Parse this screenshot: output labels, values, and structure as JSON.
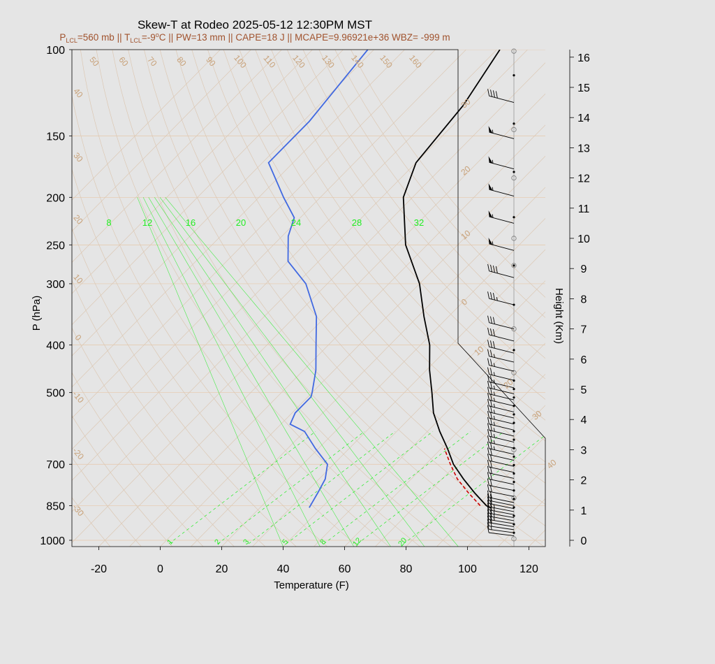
{
  "chart_data": {
    "type": "line",
    "title": "Skew-T at Rodeo 2025-05-12 12:30PM MST",
    "subtitle": "P_LCL=560 mb || T_LCL=-9°C || PW=13 mm || CAPE=18 J || MCAPE=9.96921e+36 WBZ= -999 m",
    "subtitle_parts": {
      "p_lcl_prefix": "P",
      "p_lcl_sub": "LCL",
      "p_lcl_value": "=560 mb || T",
      "t_lcl_sub": "LCL",
      "t_lcl_value": "=-9",
      "t_lcl_deg": "o",
      "rest": "C || PW=13 mm || CAPE=18 J || MCAPE=9.96921e+36 WBZ= -999 m"
    },
    "xlabel": "Temperature (F)",
    "ylabel": "P (hPa)",
    "y2label": "Height (Km)",
    "xlim": [
      -28,
      125
    ],
    "ylim": [
      1030,
      100
    ],
    "x_ticks": [
      -20,
      0,
      20,
      40,
      60,
      80,
      100,
      120
    ],
    "y_ticks": [
      100,
      150,
      200,
      250,
      300,
      400,
      500,
      700,
      850,
      1000
    ],
    "height_ticks": [
      0,
      1,
      2,
      3,
      4,
      5,
      6,
      7,
      8,
      9,
      10,
      11,
      12,
      13,
      14,
      15,
      16
    ],
    "isotherm_labels_top": [
      "50",
      "60",
      "70",
      "80",
      "90",
      "100",
      "110",
      "120",
      "130",
      "140",
      "150",
      "160"
    ],
    "isotherm_labels_left": [
      "40",
      "30",
      "20",
      "10",
      "0",
      "-10",
      "-20",
      "-30"
    ],
    "isotherm_labels_right": [
      "30",
      "20",
      "10",
      "0",
      "10",
      "20",
      "30",
      "40"
    ],
    "mixing_ratio_labels_top": [
      "8",
      "12",
      "16",
      "20",
      "24",
      "28",
      "32"
    ],
    "mixing_ratio_labels_bottom": [
      "1",
      "2",
      "3",
      "5",
      "8",
      "12",
      "20"
    ],
    "series": [
      {
        "name": "temperature",
        "color": "#000000",
        "points": [
          {
            "p": 858,
            "t": 95
          },
          {
            "p": 850,
            "t": 93
          },
          {
            "p": 800,
            "t": 85
          },
          {
            "p": 750,
            "t": 77
          },
          {
            "p": 700,
            "t": 69
          },
          {
            "p": 650,
            "t": 62
          },
          {
            "p": 600,
            "t": 54
          },
          {
            "p": 550,
            "t": 46
          },
          {
            "p": 500,
            "t": 39
          },
          {
            "p": 450,
            "t": 31
          },
          {
            "p": 400,
            "t": 23
          },
          {
            "p": 350,
            "t": 12
          },
          {
            "p": 300,
            "t": 0
          },
          {
            "p": 250,
            "t": -17
          },
          {
            "p": 200,
            "t": -33
          },
          {
            "p": 170,
            "t": -40
          },
          {
            "p": 130,
            "t": -43
          },
          {
            "p": 100,
            "t": -49
          }
        ]
      },
      {
        "name": "dewpoint",
        "color": "#4169e1",
        "points": [
          {
            "p": 858,
            "t": 36
          },
          {
            "p": 800,
            "t": 34
          },
          {
            "p": 750,
            "t": 32
          },
          {
            "p": 700,
            "t": 28
          },
          {
            "p": 650,
            "t": 19
          },
          {
            "p": 600,
            "t": 10
          },
          {
            "p": 580,
            "t": 3
          },
          {
            "p": 550,
            "t": 1
          },
          {
            "p": 510,
            "t": 1
          },
          {
            "p": 500,
            "t": 0
          },
          {
            "p": 450,
            "t": -6
          },
          {
            "p": 400,
            "t": -14
          },
          {
            "p": 350,
            "t": -23
          },
          {
            "p": 300,
            "t": -37
          },
          {
            "p": 270,
            "t": -50
          },
          {
            "p": 240,
            "t": -58
          },
          {
            "p": 220,
            "t": -62
          },
          {
            "p": 200,
            "t": -72
          },
          {
            "p": 170,
            "t": -88
          },
          {
            "p": 140,
            "t": -88
          },
          {
            "p": 100,
            "t": -92
          }
        ]
      },
      {
        "name": "parcel",
        "color": "#cc0000",
        "dashed": true,
        "points": [
          {
            "p": 850,
            "t": 91
          },
          {
            "p": 800,
            "t": 83
          },
          {
            "p": 750,
            "t": 75
          },
          {
            "p": 700,
            "t": 68
          },
          {
            "p": 650,
            "t": 61
          }
        ]
      }
    ],
    "winds": [
      {
        "z": 0.15,
        "speed": 10,
        "dir": 225
      },
      {
        "z": 0.25,
        "speed": 15,
        "dir": 230
      },
      {
        "z": 0.35,
        "speed": 20,
        "dir": 235
      },
      {
        "z": 0.45,
        "speed": 20,
        "dir": 240
      },
      {
        "z": 0.55,
        "speed": 25,
        "dir": 240
      },
      {
        "z": 0.65,
        "speed": 25,
        "dir": 245
      },
      {
        "z": 0.75,
        "speed": 25,
        "dir": 245
      },
      {
        "z": 0.85,
        "speed": 25,
        "dir": 250
      },
      {
        "z": 0.95,
        "speed": 25,
        "dir": 250
      },
      {
        "z": 1.05,
        "speed": 20,
        "dir": 255
      },
      {
        "z": 1.15,
        "speed": 20,
        "dir": 255
      },
      {
        "z": 1.25,
        "speed": 20,
        "dir": 255
      },
      {
        "z": 1.45,
        "speed": 20,
        "dir": 255
      },
      {
        "z": 1.65,
        "speed": 20,
        "dir": 255
      },
      {
        "z": 1.85,
        "speed": 20,
        "dir": 260
      },
      {
        "z": 2.05,
        "speed": 20,
        "dir": 260
      },
      {
        "z": 2.25,
        "speed": 20,
        "dir": 260
      },
      {
        "z": 2.45,
        "speed": 20,
        "dir": 265
      },
      {
        "z": 2.65,
        "speed": 20,
        "dir": 265
      },
      {
        "z": 2.85,
        "speed": 25,
        "dir": 265
      },
      {
        "z": 3.05,
        "speed": 25,
        "dir": 265
      },
      {
        "z": 3.25,
        "speed": 25,
        "dir": 270
      },
      {
        "z": 3.45,
        "speed": 25,
        "dir": 270
      },
      {
        "z": 3.65,
        "speed": 25,
        "dir": 270
      },
      {
        "z": 3.85,
        "speed": 25,
        "dir": 270
      },
      {
        "z": 4.05,
        "speed": 25,
        "dir": 270
      },
      {
        "z": 4.25,
        "speed": 25,
        "dir": 270
      },
      {
        "z": 4.45,
        "speed": 25,
        "dir": 270
      },
      {
        "z": 4.65,
        "speed": 25,
        "dir": 270
      },
      {
        "z": 4.85,
        "speed": 25,
        "dir": 270
      },
      {
        "z": 5.05,
        "speed": 25,
        "dir": 270
      },
      {
        "z": 5.3,
        "speed": 25,
        "dir": 270
      },
      {
        "z": 5.6,
        "speed": 25,
        "dir": 270
      },
      {
        "z": 5.9,
        "speed": 25,
        "dir": 270
      },
      {
        "z": 6.2,
        "speed": 30,
        "dir": 275
      },
      {
        "z": 6.6,
        "speed": 30,
        "dir": 275
      },
      {
        "z": 7.0,
        "speed": 30,
        "dir": 275
      },
      {
        "z": 7.8,
        "speed": 35,
        "dir": 275
      },
      {
        "z": 8.7,
        "speed": 40,
        "dir": 280
      },
      {
        "z": 9.6,
        "speed": 55,
        "dir": 280
      },
      {
        "z": 10.5,
        "speed": 55,
        "dir": 280
      },
      {
        "z": 11.4,
        "speed": 55,
        "dir": 280
      },
      {
        "z": 12.3,
        "speed": 55,
        "dir": 280
      },
      {
        "z": 13.3,
        "speed": 55,
        "dir": 280
      },
      {
        "z": 14.5,
        "speed": 40,
        "dir": 280
      }
    ],
    "grid": true,
    "colors": {
      "isotherm": "#dcc8b4",
      "isobar": "#e6c8aa",
      "isotherm_label": "#c8a27a",
      "mixing_ratio": "#22ee22",
      "temperature": "#000000",
      "dewpoint": "#4169e1",
      "parcel": "#cc0000",
      "subtitle": "#a0522d"
    }
  }
}
